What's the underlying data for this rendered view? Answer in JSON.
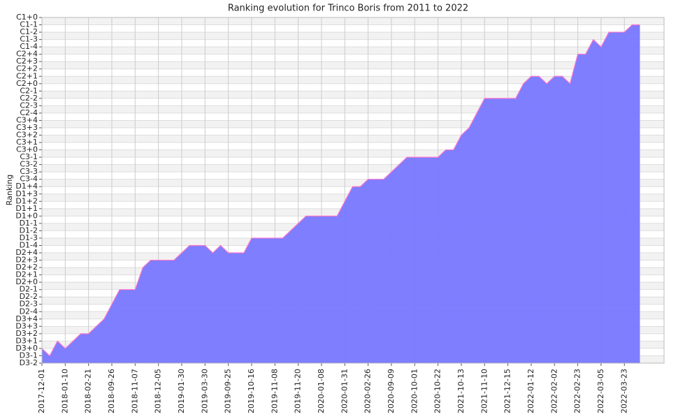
{
  "chart_data": {
    "type": "area",
    "title": "Ranking evolution for Trinco Boris from 2011 to 2022",
    "y_label": "Ranking",
    "categories": [
      "2017-12-01",
      null,
      null,
      "2018-01-10",
      null,
      null,
      "2018-02-21",
      null,
      null,
      "2018-09-26",
      null,
      null,
      "2018-11-07",
      null,
      null,
      "2018-12-05",
      null,
      null,
      "2019-01-30",
      null,
      null,
      "2019-03-30",
      null,
      null,
      "2019-09-25",
      null,
      null,
      "2019-10-16",
      null,
      null,
      "2019-11-08",
      null,
      null,
      "2019-11-20",
      null,
      null,
      "2020-01-08",
      null,
      null,
      "2020-01-31",
      null,
      null,
      "2020-02-26",
      null,
      null,
      "2020-09-09",
      null,
      null,
      "2020-10-01",
      null,
      null,
      "2020-10-22",
      null,
      null,
      "2021-10-13",
      null,
      null,
      "2021-11-10",
      null,
      null,
      "2021-12-15",
      null,
      null,
      "2022-01-12",
      null,
      null,
      "2022-02-02",
      null,
      null,
      "2022-02-23",
      null,
      null,
      "2022-03-05",
      null,
      null,
      "2022-03-23",
      null,
      null
    ],
    "values": [
      2,
      1,
      3,
      2,
      3,
      4,
      4,
      5,
      6,
      8,
      10,
      10,
      10,
      13,
      14,
      14,
      14,
      14,
      15,
      16,
      16,
      16,
      15,
      16,
      15,
      15,
      15,
      17,
      17,
      17,
      17,
      17,
      18,
      19,
      20,
      20,
      20,
      20,
      20,
      22,
      24,
      24,
      25,
      25,
      25,
      26,
      27,
      28,
      28,
      28,
      28,
      28,
      29,
      29,
      31,
      32,
      34,
      36,
      36,
      36,
      36,
      36,
      38,
      39,
      39,
      38,
      39,
      39,
      38,
      42,
      42,
      44,
      43,
      45,
      45,
      45,
      46,
      46
    ],
    "color": "#7777ff",
    "line_color": "#ff77cc",
    "grid": true,
    "ylim": [
      0,
      47
    ],
    "yticks": [
      {
        "value": 0,
        "label": "D3-2"
      },
      {
        "value": 1,
        "label": "D3-1"
      },
      {
        "value": 2,
        "label": "D3+0"
      },
      {
        "value": 3,
        "label": "D3+1"
      },
      {
        "value": 4,
        "label": "D3+2"
      },
      {
        "value": 5,
        "label": "D3+3"
      },
      {
        "value": 6,
        "label": "D3+4"
      },
      {
        "value": 7,
        "label": "D2-4"
      },
      {
        "value": 8,
        "label": "D2-3"
      },
      {
        "value": 9,
        "label": "D2-2"
      },
      {
        "value": 10,
        "label": "D2-1"
      },
      {
        "value": 11,
        "label": "D2+0"
      },
      {
        "value": 12,
        "label": "D2+1"
      },
      {
        "value": 13,
        "label": "D2+2"
      },
      {
        "value": 14,
        "label": "D2+3"
      },
      {
        "value": 15,
        "label": "D2+4"
      },
      {
        "value": 16,
        "label": "D1-4"
      },
      {
        "value": 17,
        "label": "D1-3"
      },
      {
        "value": 18,
        "label": "D1-2"
      },
      {
        "value": 19,
        "label": "D1-1"
      },
      {
        "value": 20,
        "label": "D1+0"
      },
      {
        "value": 21,
        "label": "D1+1"
      },
      {
        "value": 22,
        "label": "D1+2"
      },
      {
        "value": 23,
        "label": "D1+3"
      },
      {
        "value": 24,
        "label": "D1+4"
      },
      {
        "value": 25,
        "label": "C3-4"
      },
      {
        "value": 26,
        "label": "C3-3"
      },
      {
        "value": 27,
        "label": "C3-2"
      },
      {
        "value": 28,
        "label": "C3-1"
      },
      {
        "value": 29,
        "label": "C3+0"
      },
      {
        "value": 30,
        "label": "C3+1"
      },
      {
        "value": 31,
        "label": "C3+2"
      },
      {
        "value": 32,
        "label": "C3+3"
      },
      {
        "value": 33,
        "label": "C3+4"
      },
      {
        "value": 34,
        "label": "C2-4"
      },
      {
        "value": 35,
        "label": "C2-3"
      },
      {
        "value": 36,
        "label": "C2-2"
      },
      {
        "value": 37,
        "label": "C2-1"
      },
      {
        "value": 38,
        "label": "C2+0"
      },
      {
        "value": 39,
        "label": "C2+1"
      },
      {
        "value": 40,
        "label": "C2+2"
      },
      {
        "value": 41,
        "label": "C2+3"
      },
      {
        "value": 42,
        "label": "C2+4"
      },
      {
        "value": 43,
        "label": "C1-4"
      },
      {
        "value": 44,
        "label": "C1-3"
      },
      {
        "value": 45,
        "label": "C1-2"
      },
      {
        "value": 46,
        "label": "C1-1"
      },
      {
        "value": 47,
        "label": "C1+0"
      }
    ]
  }
}
